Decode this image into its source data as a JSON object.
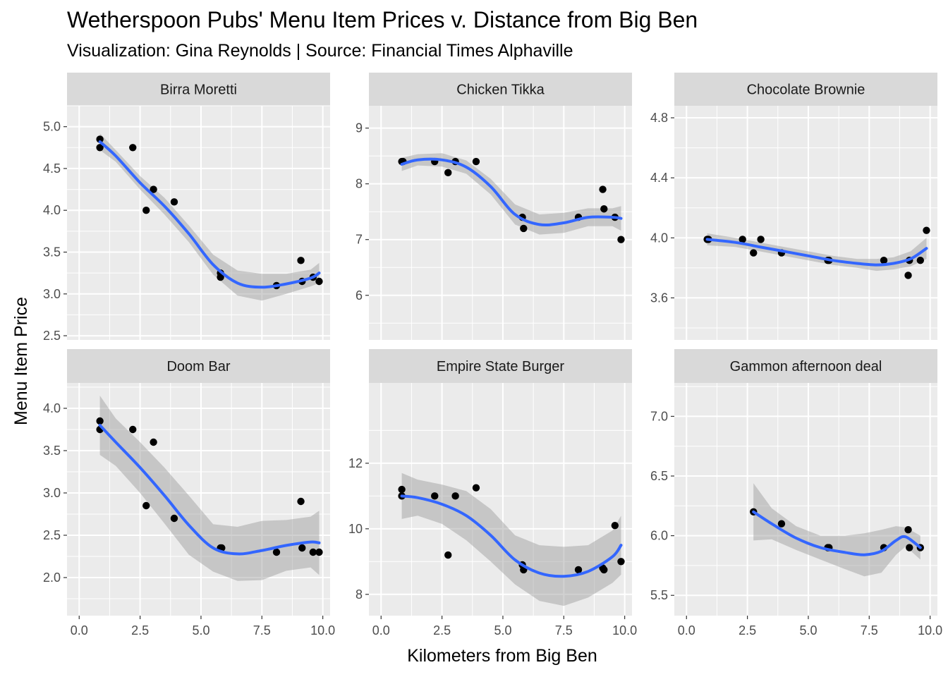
{
  "title": "Wetherspoon Pubs' Menu Item Prices v. Distance from Big Ben",
  "subtitle": "Visualization: Gina Reynolds | Source: Financial Times Alphaville",
  "colors": {
    "panel_bg": "#ebebeb",
    "grid": "#ffffff",
    "strip_bg": "#d9d9d9",
    "point": "#000000",
    "smooth_line": "#3366ff",
    "ribbon": "#999999"
  },
  "chart_data": {
    "type": "scatter",
    "layout": "facet_wrap 2x3, free y scales",
    "xlabel": "Kilometers from Big Ben",
    "ylabel": "Menu Item Price",
    "xlim": [
      -0.5,
      10.3
    ],
    "xticks": [
      "0.0",
      "2.5",
      "5.0",
      "7.5",
      "10.0"
    ],
    "grid": "on",
    "smooth": "loess with confidence band",
    "panels": [
      {
        "name": "Birra Moretti",
        "ylim": [
          2.45,
          5.25
        ],
        "yticks": [
          "2.5",
          "3.0",
          "3.5",
          "4.0",
          "4.5",
          "5.0"
        ],
        "points": [
          [
            0.85,
            4.85
          ],
          [
            0.85,
            4.75
          ],
          [
            2.2,
            4.75
          ],
          [
            2.75,
            4.0
          ],
          [
            3.05,
            4.25
          ],
          [
            3.9,
            4.1
          ],
          [
            5.8,
            3.25
          ],
          [
            5.8,
            3.2
          ],
          [
            8.1,
            3.1
          ],
          [
            9.1,
            3.4
          ],
          [
            9.15,
            3.15
          ],
          [
            9.6,
            3.2
          ],
          [
            9.85,
            3.15
          ]
        ],
        "fit": [
          [
            0.85,
            4.82
          ],
          [
            1.5,
            4.65
          ],
          [
            2.5,
            4.33
          ],
          [
            3.5,
            4.05
          ],
          [
            4.5,
            3.72
          ],
          [
            5.5,
            3.35
          ],
          [
            6.5,
            3.13
          ],
          [
            7.5,
            3.08
          ],
          [
            8.5,
            3.12
          ],
          [
            9.5,
            3.19
          ],
          [
            9.85,
            3.25
          ]
        ],
        "band": [
          0.1,
          0.07,
          0.08,
          0.1,
          0.1,
          0.12,
          0.15,
          0.16,
          0.12,
          0.1,
          0.12
        ]
      },
      {
        "name": "Chicken Tikka",
        "ylim": [
          5.2,
          9.4
        ],
        "yticks": [
          "6",
          "7",
          "8",
          "9"
        ],
        "points": [
          [
            0.85,
            8.4
          ],
          [
            0.9,
            8.4
          ],
          [
            2.2,
            8.4
          ],
          [
            2.75,
            8.2
          ],
          [
            3.05,
            8.4
          ],
          [
            3.9,
            8.4
          ],
          [
            5.8,
            7.4
          ],
          [
            5.85,
            7.2
          ],
          [
            8.1,
            7.4
          ],
          [
            9.1,
            7.9
          ],
          [
            9.15,
            7.55
          ],
          [
            9.6,
            7.4
          ],
          [
            9.85,
            7.0
          ]
        ],
        "fit": [
          [
            0.85,
            8.35
          ],
          [
            1.5,
            8.43
          ],
          [
            2.5,
            8.43
          ],
          [
            3.5,
            8.3
          ],
          [
            4.5,
            7.95
          ],
          [
            5.5,
            7.45
          ],
          [
            6.5,
            7.27
          ],
          [
            7.5,
            7.3
          ],
          [
            8.5,
            7.4
          ],
          [
            9.5,
            7.4
          ],
          [
            9.85,
            7.38
          ]
        ],
        "band": [
          0.12,
          0.1,
          0.12,
          0.12,
          0.14,
          0.18,
          0.18,
          0.18,
          0.16,
          0.16,
          0.22
        ]
      },
      {
        "name": "Chocolate Brownie",
        "ylim": [
          3.32,
          4.88
        ],
        "yticks": [
          "3.6",
          "4.0",
          "4.4",
          "4.8"
        ],
        "points": [
          [
            0.85,
            3.99
          ],
          [
            0.9,
            3.99
          ],
          [
            2.3,
            3.99
          ],
          [
            2.75,
            3.9
          ],
          [
            3.05,
            3.99
          ],
          [
            3.9,
            3.9
          ],
          [
            5.8,
            3.85
          ],
          [
            5.85,
            3.85
          ],
          [
            8.1,
            3.85
          ],
          [
            9.1,
            3.75
          ],
          [
            9.15,
            3.85
          ],
          [
            9.6,
            3.85
          ],
          [
            9.85,
            4.05
          ]
        ],
        "fit": [
          [
            0.85,
            3.99
          ],
          [
            2.0,
            3.97
          ],
          [
            3.0,
            3.94
          ],
          [
            4.0,
            3.91
          ],
          [
            5.0,
            3.88
          ],
          [
            6.0,
            3.85
          ],
          [
            7.0,
            3.83
          ],
          [
            7.8,
            3.82
          ],
          [
            8.5,
            3.83
          ],
          [
            9.2,
            3.86
          ],
          [
            9.85,
            3.93
          ]
        ],
        "band": [
          0.04,
          0.03,
          0.03,
          0.03,
          0.03,
          0.03,
          0.03,
          0.04,
          0.04,
          0.05,
          0.07
        ]
      },
      {
        "name": "Doom Bar",
        "ylim": [
          1.55,
          4.3
        ],
        "yticks": [
          "2.0",
          "2.5",
          "3.0",
          "3.5",
          "4.0"
        ],
        "points": [
          [
            0.85,
            3.85
          ],
          [
            0.85,
            3.75
          ],
          [
            2.2,
            3.75
          ],
          [
            2.75,
            2.85
          ],
          [
            3.05,
            3.6
          ],
          [
            3.9,
            2.7
          ],
          [
            5.8,
            2.35
          ],
          [
            5.85,
            2.35
          ],
          [
            8.1,
            2.3
          ],
          [
            9.1,
            2.9
          ],
          [
            9.15,
            2.35
          ],
          [
            9.6,
            2.3
          ],
          [
            9.85,
            2.3
          ]
        ],
        "fit": [
          [
            0.85,
            3.8
          ],
          [
            1.5,
            3.6
          ],
          [
            2.5,
            3.3
          ],
          [
            3.5,
            2.97
          ],
          [
            4.5,
            2.62
          ],
          [
            5.5,
            2.35
          ],
          [
            6.5,
            2.28
          ],
          [
            7.5,
            2.32
          ],
          [
            8.5,
            2.38
          ],
          [
            9.5,
            2.42
          ],
          [
            9.85,
            2.41
          ]
        ],
        "band": [
          0.35,
          0.28,
          0.3,
          0.33,
          0.35,
          0.28,
          0.32,
          0.35,
          0.3,
          0.3,
          0.38
        ]
      },
      {
        "name": "Empire State Burger",
        "ylim": [
          7.35,
          14.45
        ],
        "yticks": [
          "8",
          "10",
          "12"
        ],
        "points": [
          [
            0.85,
            11.0
          ],
          [
            0.85,
            11.2
          ],
          [
            2.2,
            11.0
          ],
          [
            2.75,
            9.2
          ],
          [
            3.05,
            11.0
          ],
          [
            3.9,
            11.25
          ],
          [
            5.8,
            8.9
          ],
          [
            5.85,
            8.75
          ],
          [
            8.1,
            8.75
          ],
          [
            9.1,
            8.8
          ],
          [
            9.15,
            8.75
          ],
          [
            9.6,
            10.1
          ],
          [
            9.85,
            9.0
          ]
        ],
        "fit": [
          [
            0.85,
            11.0
          ],
          [
            1.5,
            10.95
          ],
          [
            2.5,
            10.75
          ],
          [
            3.5,
            10.4
          ],
          [
            4.5,
            9.8
          ],
          [
            5.5,
            9.05
          ],
          [
            6.5,
            8.65
          ],
          [
            7.5,
            8.55
          ],
          [
            8.5,
            8.7
          ],
          [
            9.5,
            9.15
          ],
          [
            9.85,
            9.5
          ]
        ],
        "band": [
          0.7,
          0.55,
          0.6,
          0.75,
          0.8,
          0.75,
          0.85,
          0.9,
          0.8,
          0.8,
          0.9
        ]
      },
      {
        "name": "Gammon afternoon deal",
        "ylim": [
          5.33,
          7.28
        ],
        "yticks": [
          "5.5",
          "6.0",
          "6.5",
          "7.0"
        ],
        "points": [
          [
            2.75,
            6.2
          ],
          [
            3.9,
            6.1
          ],
          [
            5.8,
            5.9
          ],
          [
            5.85,
            5.9
          ],
          [
            8.1,
            5.9
          ],
          [
            9.1,
            6.05
          ],
          [
            9.15,
            5.9
          ],
          [
            9.6,
            5.9
          ]
        ],
        "fit": [
          [
            2.75,
            6.2
          ],
          [
            3.5,
            6.1
          ],
          [
            4.5,
            5.98
          ],
          [
            5.5,
            5.9
          ],
          [
            6.5,
            5.86
          ],
          [
            7.3,
            5.84
          ],
          [
            8.0,
            5.87
          ],
          [
            8.6,
            5.96
          ],
          [
            9.0,
            5.99
          ],
          [
            9.6,
            5.9
          ]
        ],
        "band": [
          0.24,
          0.13,
          0.1,
          0.1,
          0.14,
          0.18,
          0.18,
          0.12,
          0.08,
          0.1
        ]
      }
    ]
  }
}
